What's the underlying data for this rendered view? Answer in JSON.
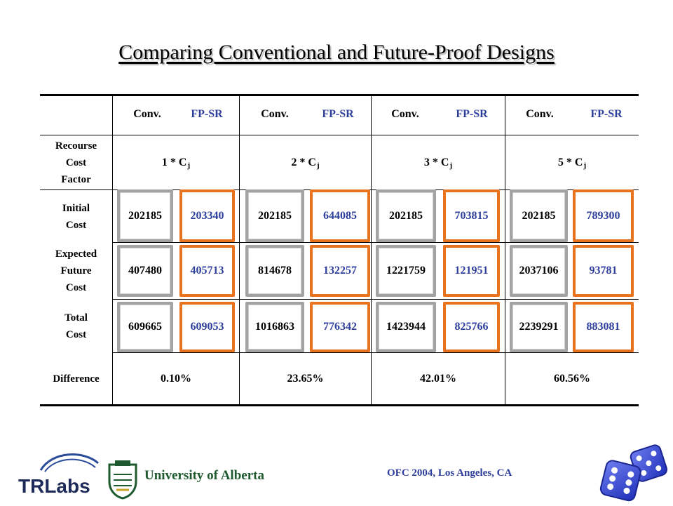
{
  "title": "Comparing Conventional and Future-Proof Designs",
  "header": [
    "Conv.",
    "FP-SR",
    "Conv.",
    "FP-SR",
    "Conv.",
    "FP-SR",
    "Conv.",
    "FP-SR"
  ],
  "rows": {
    "recourse": {
      "label": [
        "Recourse",
        "Cost",
        "Factor"
      ],
      "factors": [
        "1",
        "2",
        "3",
        "5"
      ],
      "factor_text": " * C",
      "subscript": "j"
    },
    "initial": {
      "label": [
        "Initial",
        "Cost"
      ],
      "values": [
        "202185",
        "203340",
        "202185",
        "644085",
        "202185",
        "703815",
        "202185",
        "789300"
      ]
    },
    "expected": {
      "label": [
        "Expected",
        "Future",
        "Cost"
      ],
      "values": [
        "407480",
        "405713",
        "814678",
        "132257",
        "1221759",
        "121951",
        "2037106",
        "93781"
      ]
    },
    "total": {
      "label": [
        "Total",
        "Cost"
      ],
      "values": [
        "609665",
        "609053",
        "1016863",
        "776342",
        "1423944",
        "825766",
        "2239291",
        "883081"
      ]
    },
    "difference": {
      "label": "Difference",
      "values": [
        "0.10%",
        "23.65%",
        "42.01%",
        "60.56%"
      ]
    }
  },
  "footer": {
    "conference": "OFC 2004, Los Angeles, CA",
    "trlabs_logo": "TRLabs",
    "university": "University of Alberta"
  },
  "icons": [
    "trlabs-logo",
    "university-crest-icon",
    "dice-icon"
  ],
  "colors": {
    "conv_text": "#000000",
    "fpsr_text": "#2e3e9c",
    "conv_box": "#a3a3a3",
    "fpsr_box": "#e8731e",
    "footer_text": "#2e3e9c"
  }
}
